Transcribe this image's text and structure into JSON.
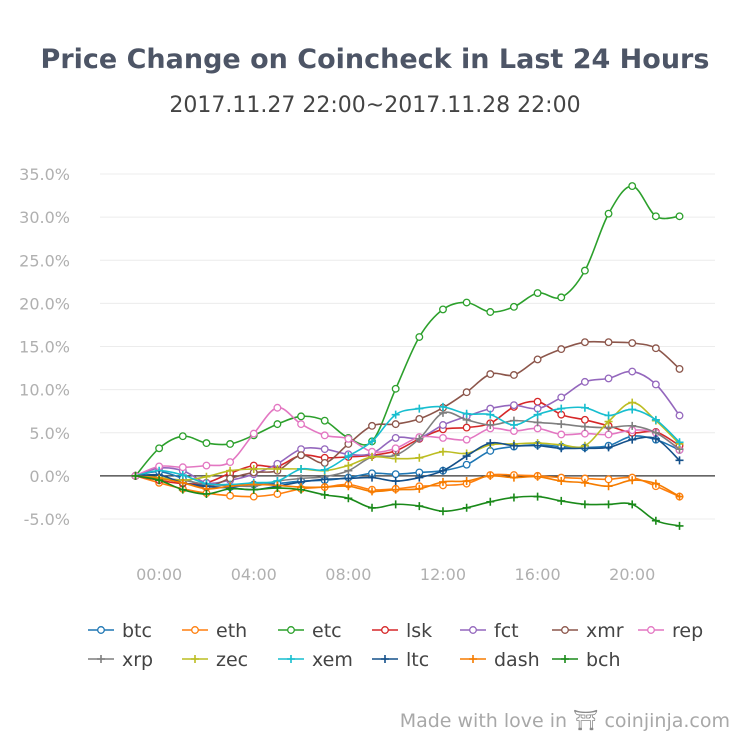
{
  "chart_data": {
    "type": "line",
    "title": "Price Change on Coincheck in Last 24 Hours",
    "subtitle": "2017.11.27 22:00~2017.11.28 22:00",
    "xlabel": "",
    "ylabel": "",
    "x_ticks": [
      "00:00",
      "04:00",
      "08:00",
      "12:00",
      "16:00",
      "20:00"
    ],
    "x": [
      -1,
      0,
      1,
      2,
      3,
      4,
      5,
      6,
      7,
      8,
      9,
      10,
      11,
      12,
      13,
      14,
      15,
      16,
      17,
      18,
      19,
      20,
      21,
      22
    ],
    "ylim": [
      -5,
      35
    ],
    "y_ticks": [
      "-5.0%",
      "0.0%",
      "5.0%",
      "10.0%",
      "15.0%",
      "20.0%",
      "25.0%",
      "30.0%",
      "35.0%"
    ],
    "grid": true,
    "legend_position": "bottom",
    "series": [
      {
        "name": "btc",
        "color": "#1f77b4",
        "marker": "circle",
        "values": [
          0,
          0.5,
          -0.3,
          -1.2,
          -1.3,
          -1.0,
          -0.9,
          -0.6,
          -0.5,
          -0.2,
          0.3,
          0.2,
          0.4,
          0.6,
          1.3,
          2.9,
          3.4,
          3.6,
          3.4,
          3.3,
          3.5,
          4.6,
          4.2,
          3.0
        ]
      },
      {
        "name": "eth",
        "color": "#ff7f0e",
        "marker": "circle",
        "values": [
          0,
          -0.8,
          -1.5,
          -2.0,
          -2.3,
          -2.4,
          -2.1,
          -1.5,
          -1.3,
          -1.0,
          -1.6,
          -1.5,
          -1.2,
          -1.1,
          -0.9,
          0.1,
          0.1,
          0.0,
          -0.2,
          -0.3,
          -0.4,
          -0.2,
          -1.2,
          -2.4
        ]
      },
      {
        "name": "etc",
        "color": "#2ca02c",
        "marker": "circle",
        "values": [
          0,
          3.2,
          4.6,
          3.8,
          3.7,
          4.7,
          6.0,
          6.9,
          6.4,
          4.4,
          4.0,
          10.1,
          16.1,
          19.3,
          20.1,
          19.0,
          19.6,
          21.2,
          20.7,
          23.8,
          30.4,
          33.6,
          30.1,
          30.1
        ]
      },
      {
        "name": "lsk",
        "color": "#d62728",
        "marker": "circle",
        "values": [
          0,
          -0.5,
          -0.9,
          -0.8,
          0.3,
          1.2,
          1.1,
          2.4,
          2.1,
          2.2,
          2.4,
          2.9,
          4.3,
          5.4,
          5.6,
          6.1,
          8.0,
          8.6,
          7.1,
          6.5,
          5.8,
          5.0,
          5.1,
          3.5
        ]
      },
      {
        "name": "fct",
        "color": "#9467bd",
        "marker": "circle",
        "values": [
          0,
          0.9,
          0.6,
          -0.8,
          -0.5,
          0.2,
          1.4,
          3.1,
          3.1,
          2.5,
          2.6,
          4.4,
          4.4,
          5.9,
          6.9,
          7.8,
          8.2,
          7.8,
          9.1,
          10.9,
          11.3,
          12.1,
          10.6,
          7.0
        ]
      },
      {
        "name": "xmr",
        "color": "#8c564b",
        "marker": "circle",
        "values": [
          0,
          -0.2,
          -0.8,
          -1.3,
          -0.3,
          0.4,
          0.6,
          2.4,
          1.5,
          3.7,
          5.8,
          6.0,
          6.6,
          7.9,
          9.7,
          11.8,
          11.7,
          13.5,
          14.7,
          15.5,
          15.5,
          15.4,
          14.8,
          12.4
        ]
      },
      {
        "name": "rep",
        "color": "#e377c2",
        "marker": "circle",
        "values": [
          0,
          1.1,
          1.0,
          1.2,
          1.6,
          4.9,
          7.9,
          6.0,
          4.7,
          4.3,
          2.8,
          3.2,
          4.5,
          4.4,
          4.2,
          5.5,
          5.2,
          5.5,
          4.8,
          4.9,
          4.8,
          5.3,
          5.0,
          3.0
        ]
      },
      {
        "name": "xrp",
        "color": "#7f7f7f",
        "marker": "plus",
        "values": [
          0,
          -0.3,
          -0.5,
          -1.0,
          -1.1,
          -1.2,
          -0.6,
          -0.3,
          -0.1,
          0.6,
          2.2,
          2.4,
          4.3,
          7.3,
          6.5,
          5.9,
          6.4,
          6.2,
          6.0,
          5.7,
          5.6,
          5.8,
          5.0,
          3.1
        ]
      },
      {
        "name": "zec",
        "color": "#bcbd22",
        "marker": "plus",
        "values": [
          0,
          -0.2,
          -0.5,
          -0.1,
          0.6,
          0.8,
          0.8,
          0.8,
          0.6,
          1.2,
          2.2,
          2.0,
          2.1,
          2.8,
          2.6,
          3.6,
          3.7,
          3.8,
          3.6,
          3.5,
          6.3,
          8.5,
          6.4,
          3.7
        ]
      },
      {
        "name": "xem",
        "color": "#17becf",
        "marker": "plus",
        "values": [
          0,
          0.6,
          0.1,
          -0.9,
          -1.0,
          -0.8,
          -0.6,
          0.8,
          0.7,
          2.3,
          4.0,
          7.1,
          7.8,
          8.0,
          7.2,
          7.1,
          5.9,
          7.1,
          7.8,
          7.9,
          7.0,
          7.7,
          6.5,
          3.9
        ]
      },
      {
        "name": "ltc",
        "color": "#14508a",
        "marker": "plus",
        "values": [
          0,
          0.1,
          -0.8,
          -1.2,
          -1.4,
          -1.6,
          -1.2,
          -0.7,
          -0.4,
          -0.3,
          -0.2,
          -0.6,
          -0.2,
          0.6,
          2.3,
          3.8,
          3.5,
          3.5,
          3.2,
          3.2,
          3.3,
          4.2,
          4.3,
          1.8
        ]
      },
      {
        "name": "dash",
        "color": "#f57c00",
        "marker": "plus",
        "values": [
          0,
          -0.3,
          -0.8,
          -1.5,
          -1.2,
          -1.0,
          -1.1,
          -1.3,
          -1.3,
          -1.2,
          -1.8,
          -1.6,
          -1.5,
          -0.7,
          -0.6,
          0.0,
          -0.2,
          -0.1,
          -0.6,
          -0.8,
          -1.2,
          -0.5,
          -0.9,
          -2.4
        ]
      },
      {
        "name": "bch",
        "color": "#1a8a1a",
        "marker": "plus",
        "values": [
          0,
          -0.5,
          -1.6,
          -2.1,
          -1.5,
          -1.6,
          -1.4,
          -1.6,
          -2.2,
          -2.6,
          -3.7,
          -3.3,
          -3.5,
          -4.1,
          -3.7,
          -3.0,
          -2.5,
          -2.4,
          -2.9,
          -3.3,
          -3.3,
          -3.3,
          -5.2,
          -5.8
        ]
      }
    ]
  },
  "footer": {
    "text": "Made with love in",
    "brand": "coinjinja.com"
  }
}
